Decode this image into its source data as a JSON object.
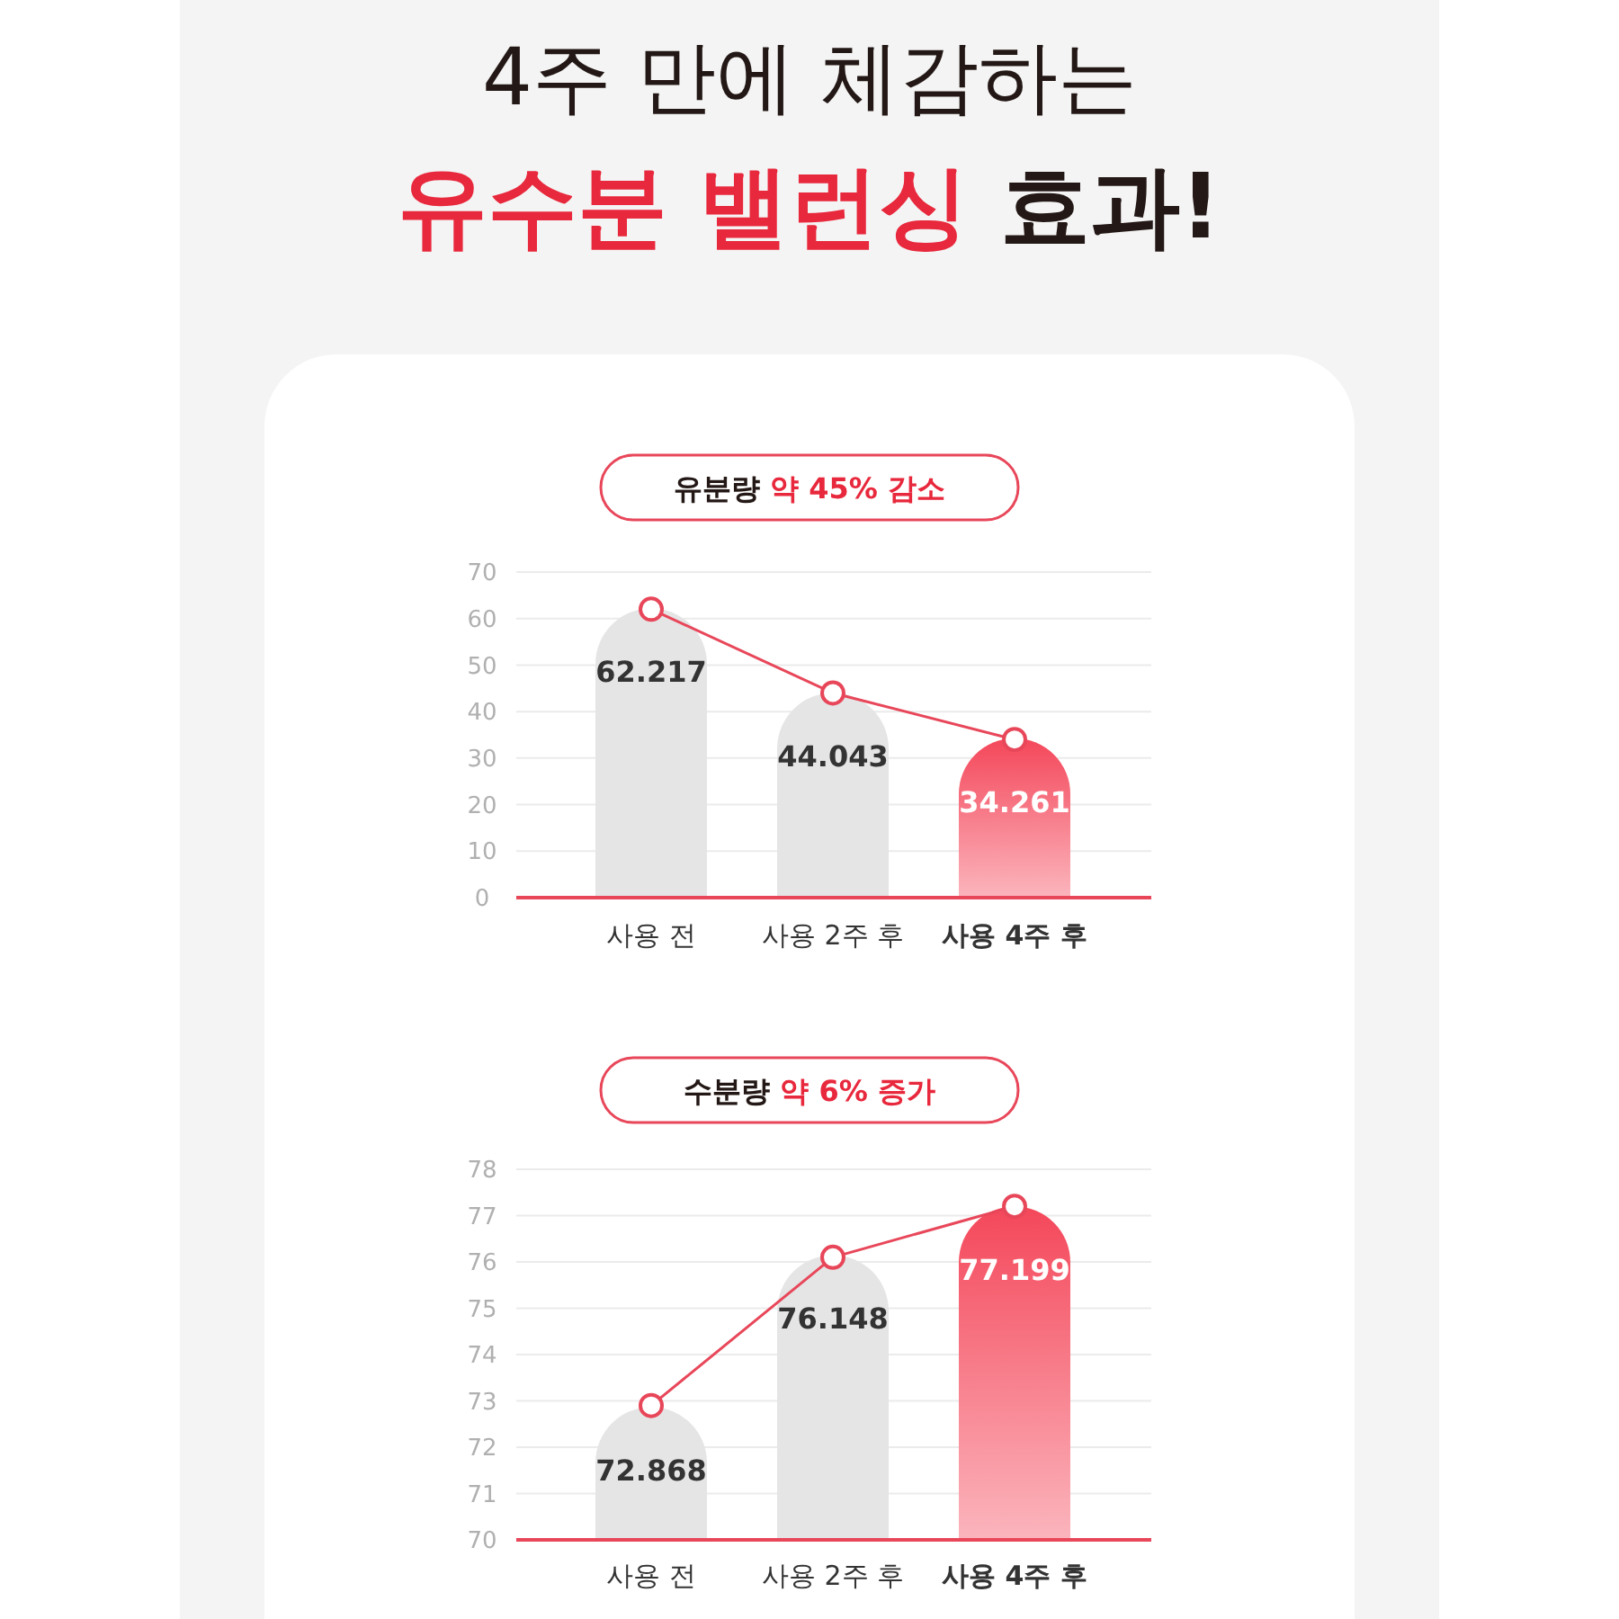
{
  "chart_data": [
    {
      "type": "bar",
      "title": "4주 만에 체감하는\n유수분 밸런싱 효과!",
      "subtitle": "유분량 약 45% 감소",
      "categories": [
        "사용 전",
        "사용 2주 후",
        "사용 4주 후"
      ],
      "series": [
        {
          "values": [
            62.217,
            44.043,
            34.261
          ],
          "colors": [
            "#e5e5e5",
            "#e5e5e5",
            "#f4475a"
          ],
          "value_labels": [
            "62.217",
            "44.043",
            "34.261"
          ]
        },
        {
          "type": "line",
          "values": [
            62,
            44,
            34
          ],
          "color": "#e8475a"
        }
      ],
      "marker": "circle",
      "ylim": [
        0,
        70
      ],
      "yticks": [
        0,
        10,
        20,
        30,
        40,
        50,
        60,
        70
      ],
      "grid": "y"
    },
    {
      "type": "bar",
      "subtitle": "수분량 약 6% 증가",
      "categories": [
        "사용 전",
        "사용 2주 후",
        "사용 4주 후"
      ],
      "series": [
        {
          "values": [
            72.868,
            76.148,
            77.199
          ],
          "colors": [
            "#e5e5e5",
            "#e5e5e5",
            "#f4475a"
          ],
          "value_labels": [
            "72.868",
            "76.148",
            "77.199"
          ]
        },
        {
          "type": "line",
          "values": [
            72.9,
            76.1,
            77.2
          ],
          "color": "#e8475a"
        }
      ],
      "marker": "circle",
      "ylim": [
        70,
        78
      ],
      "yticks": [
        70,
        71,
        72,
        73,
        74,
        75,
        76,
        77,
        78
      ],
      "grid": "y"
    }
  ]
}
